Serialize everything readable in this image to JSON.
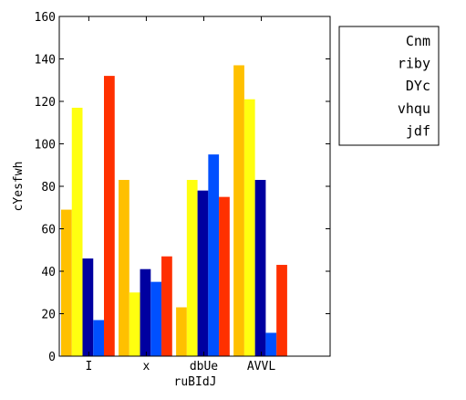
{
  "chart_data": {
    "type": "bar",
    "title": "",
    "xlabel": "ruBIdJ",
    "ylabel": "cYesfwh",
    "categories": [
      "I",
      "x",
      "dbUe",
      "AVVL"
    ],
    "ylim": [
      0,
      160
    ],
    "yticks": [
      "0",
      "20",
      "40",
      "60",
      "80",
      "100",
      "120",
      "140",
      "160"
    ],
    "grid": false,
    "legend_position": "outside-right",
    "legend": [
      "Cnm",
      "riby",
      "DYc",
      "vhqu",
      "jdf"
    ],
    "colors": [
      "#ffc000",
      "#ffff10",
      "#0000a0",
      "#0050ff",
      "#ff3000"
    ],
    "series": [
      {
        "name": "Cnm",
        "values": [
          69,
          83,
          23,
          137
        ]
      },
      {
        "name": "riby",
        "values": [
          117,
          30,
          83,
          121
        ]
      },
      {
        "name": "DYc",
        "values": [
          46,
          41,
          78,
          83
        ]
      },
      {
        "name": "vhqu",
        "values": [
          17,
          35,
          95,
          11
        ]
      },
      {
        "name": "jdf",
        "values": [
          132,
          47,
          75,
          43
        ]
      }
    ]
  }
}
